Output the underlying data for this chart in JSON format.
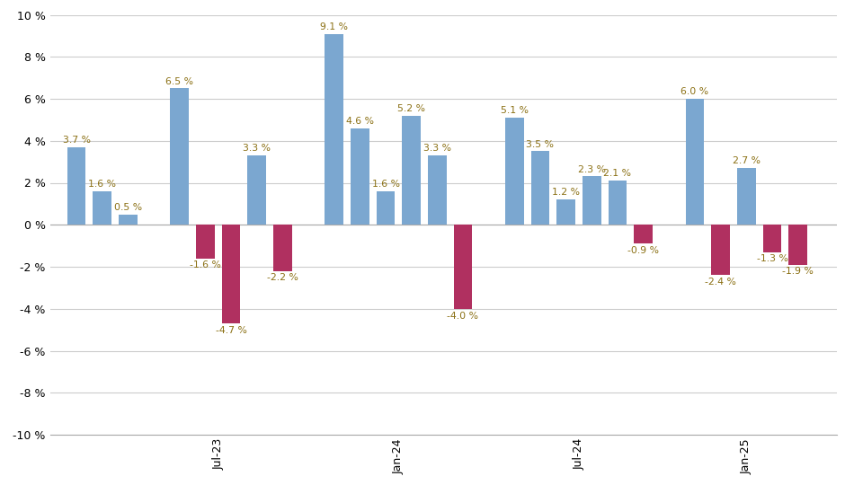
{
  "bars": [
    {
      "x": 1,
      "value": 3.7,
      "color": "#7BA7D0"
    },
    {
      "x": 2,
      "value": 1.6,
      "color": "#7BA7D0"
    },
    {
      "x": 3,
      "value": 0.5,
      "color": "#7BA7D0"
    },
    {
      "x": 5,
      "value": 6.5,
      "color": "#7BA7D0"
    },
    {
      "x": 6,
      "value": -1.6,
      "color": "#B03060"
    },
    {
      "x": 7,
      "value": -4.7,
      "color": "#B03060"
    },
    {
      "x": 8,
      "value": 3.3,
      "color": "#7BA7D0"
    },
    {
      "x": 9,
      "value": -2.2,
      "color": "#B03060"
    },
    {
      "x": 11,
      "value": 9.1,
      "color": "#7BA7D0"
    },
    {
      "x": 12,
      "value": 4.6,
      "color": "#7BA7D0"
    },
    {
      "x": 13,
      "value": 1.6,
      "color": "#7BA7D0"
    },
    {
      "x": 14,
      "value": 5.2,
      "color": "#7BA7D0"
    },
    {
      "x": 15,
      "value": 3.3,
      "color": "#7BA7D0"
    },
    {
      "x": 16,
      "value": -4.0,
      "color": "#B03060"
    },
    {
      "x": 18,
      "value": 5.1,
      "color": "#7BA7D0"
    },
    {
      "x": 19,
      "value": 3.5,
      "color": "#7BA7D0"
    },
    {
      "x": 20,
      "value": 1.2,
      "color": "#7BA7D0"
    },
    {
      "x": 21,
      "value": 2.3,
      "color": "#7BA7D0"
    },
    {
      "x": 22,
      "value": 2.1,
      "color": "#7BA7D0"
    },
    {
      "x": 23,
      "value": -0.9,
      "color": "#B03060"
    },
    {
      "x": 25,
      "value": 6.0,
      "color": "#7BA7D0"
    },
    {
      "x": 26,
      "value": -2.4,
      "color": "#B03060"
    },
    {
      "x": 27,
      "value": 2.7,
      "color": "#7BA7D0"
    },
    {
      "x": 28,
      "value": -1.3,
      "color": "#B03060"
    },
    {
      "x": 29,
      "value": -1.9,
      "color": "#B03060"
    }
  ],
  "xticks": [
    6.5,
    13.5,
    20.5,
    27.0
  ],
  "xticklabels": [
    "Jul-23",
    "Jan-24",
    "Jul-24",
    "Jan-25"
  ],
  "ylim": [
    -10,
    10
  ],
  "yticks": [
    -10,
    -8,
    -6,
    -4,
    -2,
    0,
    2,
    4,
    6,
    8,
    10
  ],
  "yticklabels": [
    "-10 %",
    "-8 %",
    "-6 %",
    "-4 %",
    "-2 %",
    "0 %",
    "2 %",
    "4 %",
    "6 %",
    "8 %",
    "10 %"
  ],
  "bar_width": 0.72,
  "label_fontsize": 7.8,
  "tick_fontsize": 9,
  "xtick_fontsize": 9,
  "background_color": "#FFFFFF",
  "grid_color": "#CCCCCC",
  "label_color": "#8B7014",
  "xlim": [
    0,
    30.5
  ]
}
